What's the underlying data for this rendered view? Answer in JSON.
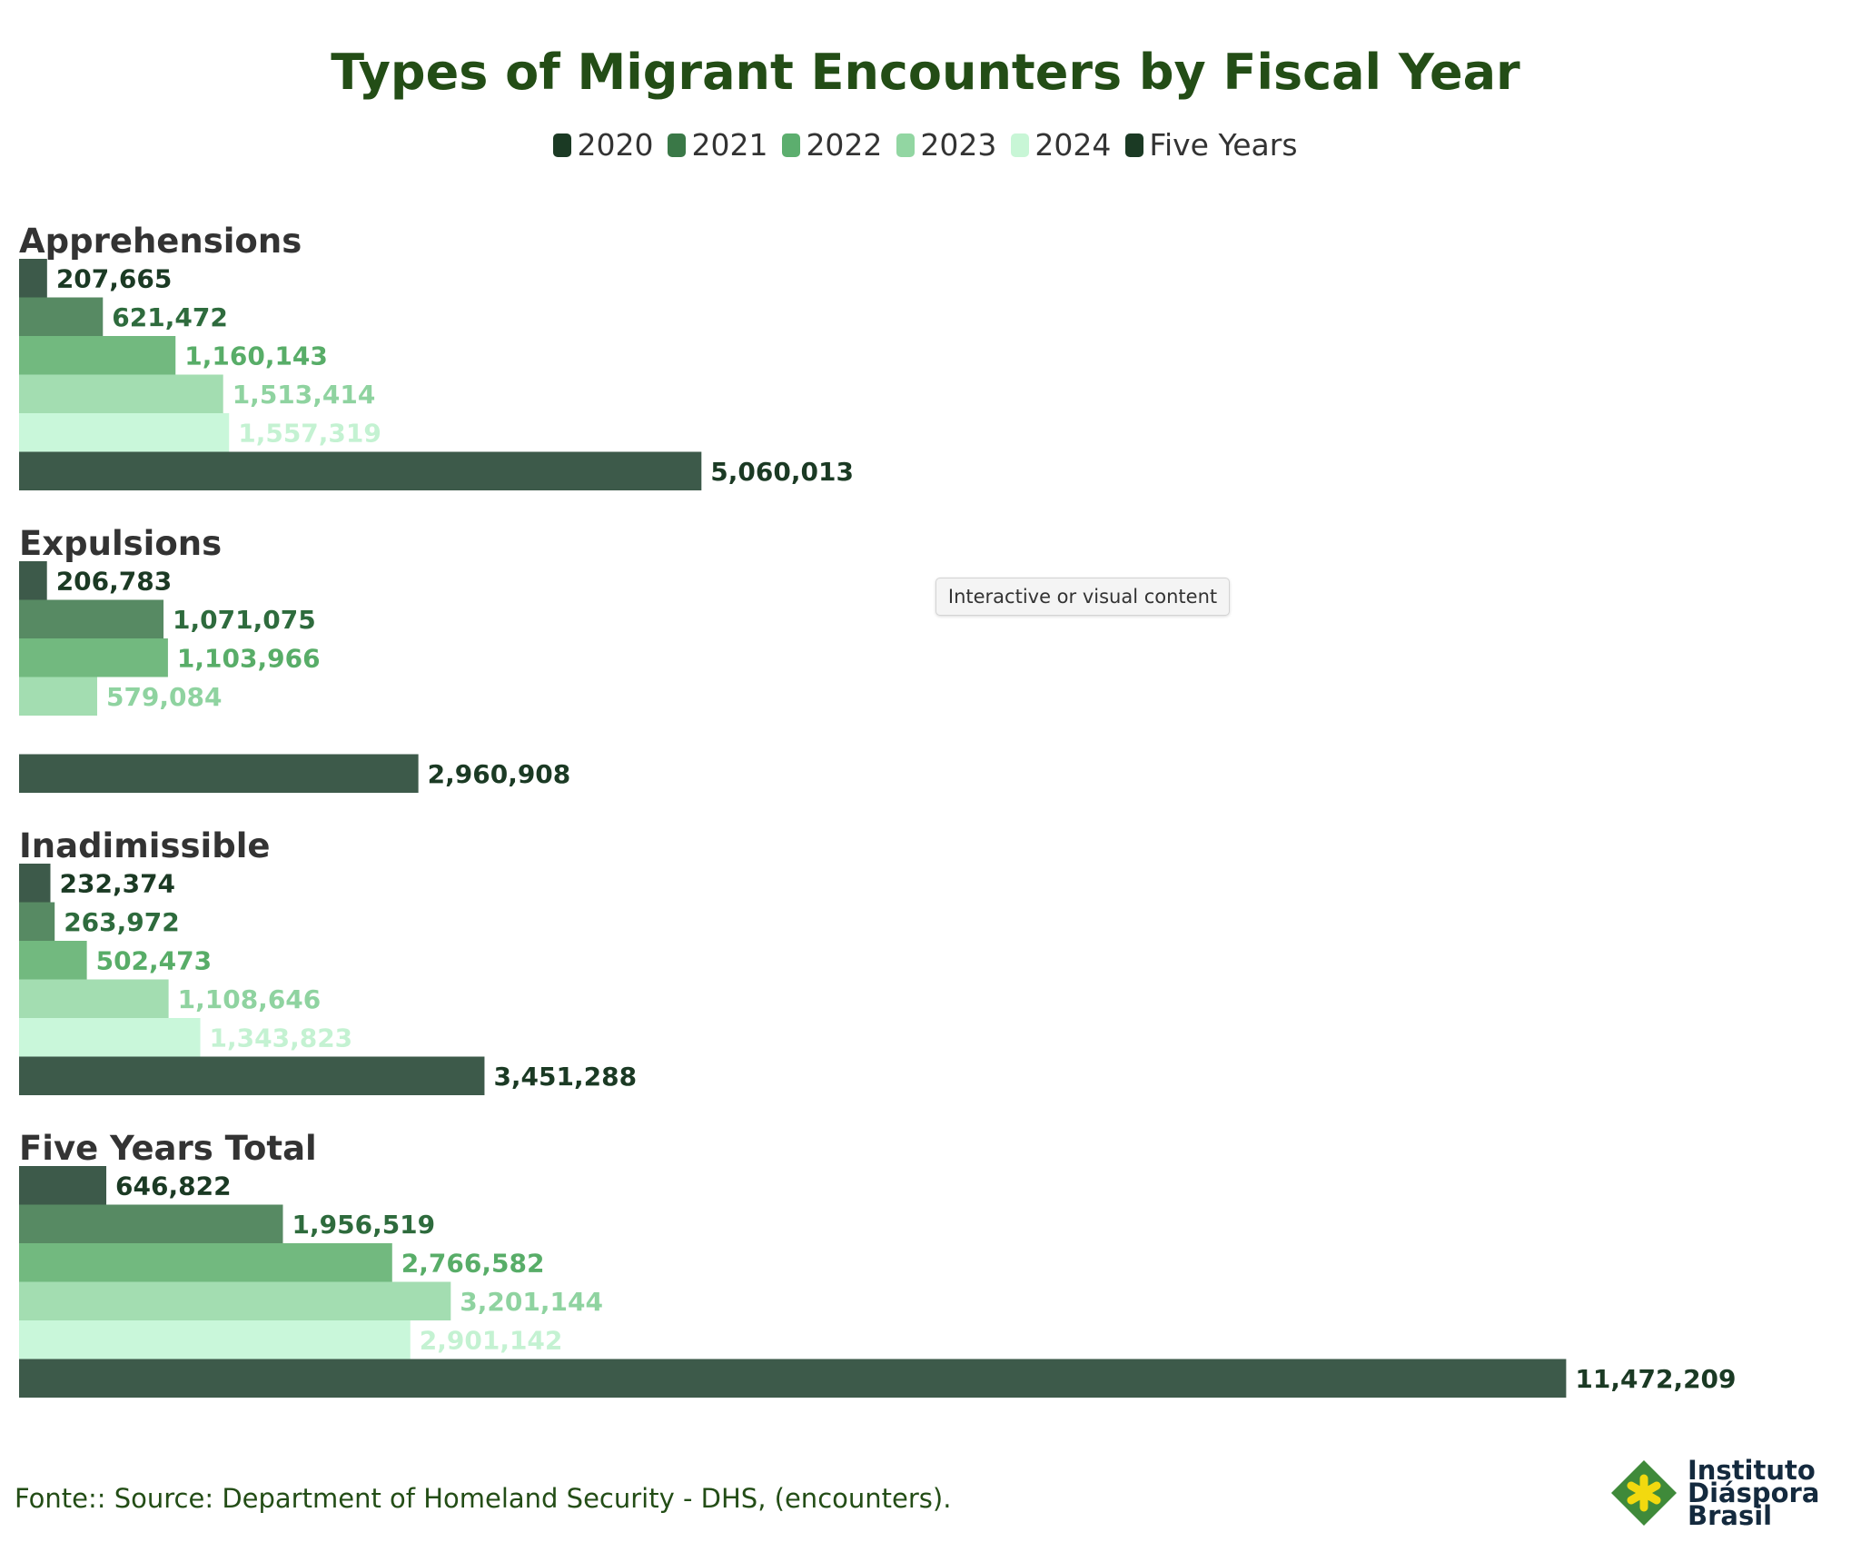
{
  "title": "Types of Migrant Encounters by Fiscal Year",
  "legend": [
    {
      "label": "2020",
      "color": "#1b3a24"
    },
    {
      "label": "2021",
      "color": "#3a7847"
    },
    {
      "label": "2022",
      "color": "#5cae6e"
    },
    {
      "label": "2023",
      "color": "#92d6a2"
    },
    {
      "label": "2024",
      "color": "#c8f6d6"
    },
    {
      "label": "Five Years",
      "color": "#1b3a24"
    }
  ],
  "tooltip": "Interactive or visual content",
  "source": "Fonte:: Source: Department of Homeland Security - DHS, (encounters).",
  "logo": {
    "line1": "Instituto",
    "line2": "Diáspora",
    "line3": "Brasil"
  },
  "chart_data": {
    "type": "bar",
    "orientation": "horizontal",
    "title": "Types of Migrant Encounters by Fiscal Year",
    "categories": [
      "Apprehensions",
      "Expulsions",
      "Inadimissible",
      "Five Years Total"
    ],
    "series": [
      {
        "name": "2020",
        "bar_color": "#3d5a4a",
        "label_color": "#1b3a24",
        "values": [
          207665,
          206783,
          232374,
          646822
        ],
        "labels": [
          "207,665",
          "206,783",
          "232,374",
          "646,822"
        ]
      },
      {
        "name": "2021",
        "bar_color": "#578a63",
        "label_color": "#2e6b3d",
        "values": [
          621472,
          1071075,
          263972,
          1956519
        ],
        "labels": [
          "621,472",
          "1,071,075",
          "263,972",
          "1,956,519"
        ]
      },
      {
        "name": "2022",
        "bar_color": "#72b97f",
        "label_color": "#58ad68",
        "values": [
          1160143,
          1103966,
          502473,
          2766582
        ],
        "labels": [
          "1,160,143",
          "1,103,966",
          "502,473",
          "2,766,582"
        ]
      },
      {
        "name": "2023",
        "bar_color": "#a3ddb1",
        "label_color": "#8fd3a0",
        "values": [
          1513414,
          579084,
          1108646,
          3201144
        ],
        "labels": [
          "1,513,414",
          "579,084",
          "1,108,646",
          "3,201,144"
        ]
      },
      {
        "name": "2024",
        "bar_color": "#c9f7da",
        "label_color": "#c4f2d2",
        "values": [
          1557319,
          null,
          1343823,
          2901142
        ],
        "labels": [
          "1,557,319",
          "",
          "1,343,823",
          "2,901,142"
        ]
      },
      {
        "name": "Five Years",
        "bar_color": "#3d5a4a",
        "label_color": "#1b3a24",
        "values": [
          5060013,
          2960908,
          3451288,
          11472209
        ],
        "labels": [
          "5,060,013",
          "2,960,908",
          "3,451,288",
          "11,472,209"
        ]
      }
    ],
    "xlim": [
      0,
      12500000
    ],
    "grid": false,
    "legend_position": "top"
  }
}
